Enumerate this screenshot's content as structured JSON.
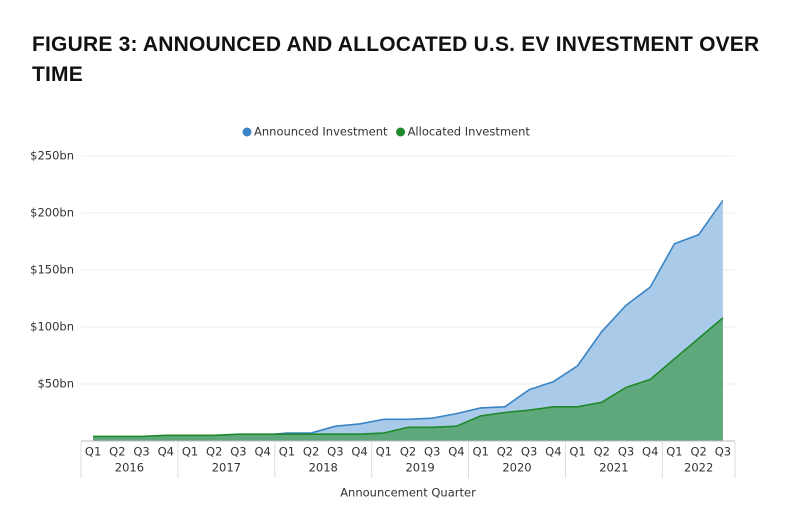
{
  "chart_data": {
    "type": "area",
    "title": "FIGURE 3: ANNOUNCED AND ALLOCATED U.S. EV INVESTMENT OVER TIME",
    "x_label": "Announcement Quarter",
    "categories": [
      "Q1",
      "Q2",
      "Q3",
      "Q4",
      "Q1",
      "Q2",
      "Q3",
      "Q4",
      "Q1",
      "Q2",
      "Q3",
      "Q4",
      "Q1",
      "Q2",
      "Q3",
      "Q4",
      "Q1",
      "Q2",
      "Q3",
      "Q4",
      "Q1",
      "Q2",
      "Q3",
      "Q4",
      "Q1",
      "Q2",
      "Q3"
    ],
    "years": [
      "2016",
      "2017",
      "2018",
      "2019",
      "2020",
      "2021",
      "2022"
    ],
    "series": [
      {
        "name": "Announced Investment",
        "color": "#3a85c6",
        "fill": "#a9cbe9",
        "values": [
          3,
          3,
          3,
          4,
          4,
          4,
          5,
          5,
          7,
          7,
          13,
          15,
          19,
          19,
          20,
          24,
          29,
          30,
          45,
          52,
          66,
          96,
          119,
          135,
          173,
          181,
          211
        ]
      },
      {
        "name": "Allocated Investment",
        "color": "#1f8a2c",
        "fill": "#5ea87c",
        "values": [
          4,
          4,
          4,
          5,
          5,
          5,
          6,
          6,
          6,
          6,
          6,
          6,
          7,
          12,
          12,
          13,
          22,
          25,
          27,
          30,
          30,
          34,
          47,
          54,
          72,
          90,
          108
        ]
      }
    ],
    "ylim": [
      0,
      250
    ],
    "yticks": [
      {
        "value": 50,
        "label": "$50bn"
      },
      {
        "value": 100,
        "label": "$100bn"
      },
      {
        "value": 150,
        "label": "$150bn"
      },
      {
        "value": 200,
        "label": "$200bn"
      },
      {
        "value": 250,
        "label": "$250bn"
      }
    ],
    "grid": true,
    "legend": "top"
  }
}
